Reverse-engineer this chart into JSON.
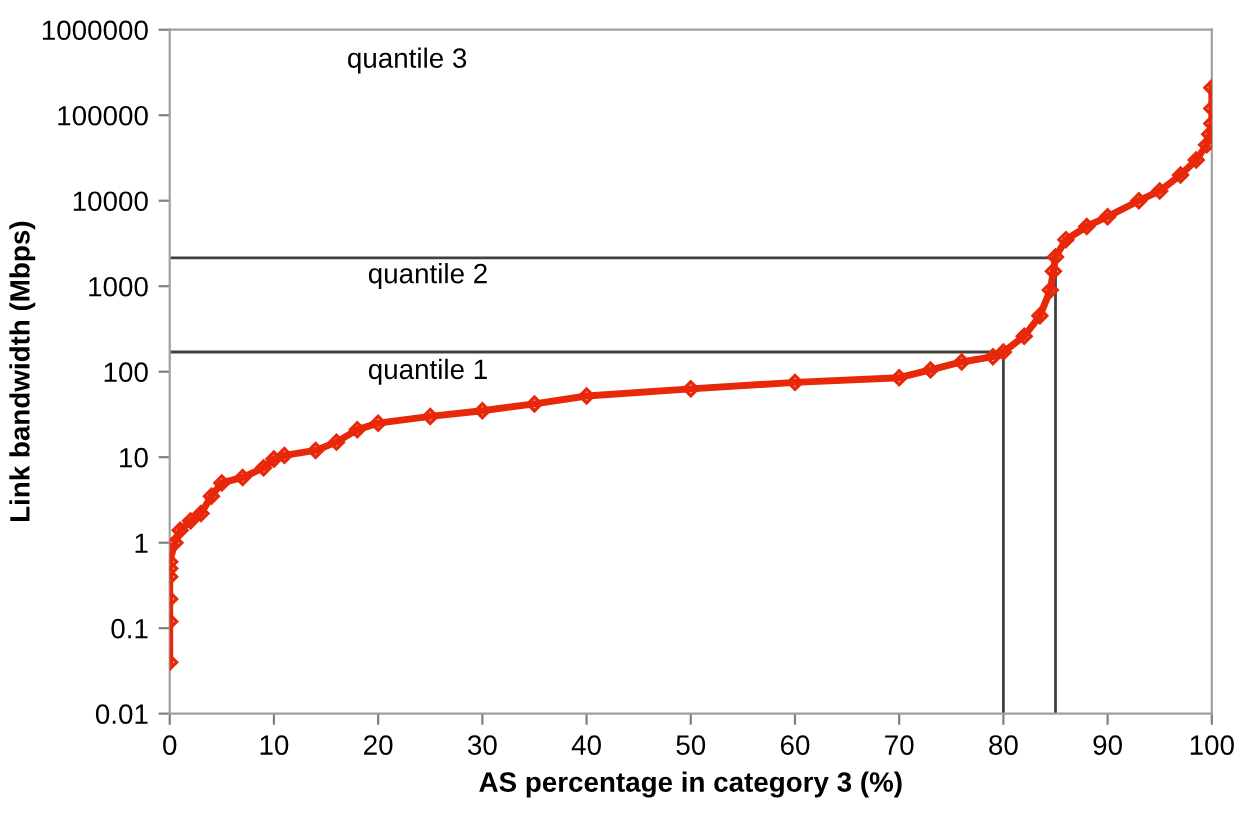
{
  "chart_data": {
    "type": "line",
    "xlabel": "AS percentage in category 3 (%)",
    "ylabel": "Link bandwidth (Mbps)",
    "log": "y",
    "grid": false,
    "legend": false,
    "xlim": [
      0,
      100
    ],
    "xticks": [
      0,
      10,
      20,
      30,
      40,
      50,
      60,
      70,
      80,
      90,
      100
    ],
    "ylim": [
      0.01,
      1000000
    ],
    "yticks": [
      0.01,
      0.1,
      1,
      10,
      100,
      1000,
      10000,
      100000,
      1000000
    ],
    "series": [
      {
        "color": "#e8280a",
        "marker": "diamond",
        "x": [
          0,
          0,
          0,
          0,
          0,
          0,
          0.5,
          1,
          2,
          3,
          4,
          5,
          7,
          9,
          10,
          11,
          14,
          16,
          18,
          20,
          25,
          30,
          35,
          40,
          50,
          60,
          70,
          73,
          76,
          79,
          80,
          82,
          83.5,
          84.5,
          84.8,
          85,
          86,
          88,
          90,
          93,
          95,
          97,
          98.5,
          99.5,
          99.8,
          100,
          100,
          100
        ],
        "values": [
          0.04,
          0.12,
          0.22,
          0.4,
          0.5,
          0.6,
          1.0,
          1.4,
          1.8,
          2.2,
          3.5,
          5,
          5.8,
          7.5,
          9.5,
          10.5,
          12,
          15,
          21,
          25,
          30,
          35,
          42,
          52,
          63,
          75,
          85,
          105,
          130,
          150,
          170,
          260,
          450,
          900,
          1500,
          2200,
          3500,
          5000,
          6500,
          10000,
          13000,
          20000,
          30000,
          45000,
          60000,
          80000,
          120000,
          210000
        ]
      },
      {
        "color": "#404040",
        "marker": "none",
        "x": [
          0,
          80,
          80
        ],
        "values": [
          170,
          170,
          0.01
        ]
      },
      {
        "color": "#404040",
        "marker": "none",
        "x": [
          0,
          85,
          85
        ],
        "values": [
          2150,
          2150,
          0.01
        ]
      }
    ],
    "annotations": [
      "quantile 1",
      "quantile 2",
      "quantile 3"
    ]
  }
}
